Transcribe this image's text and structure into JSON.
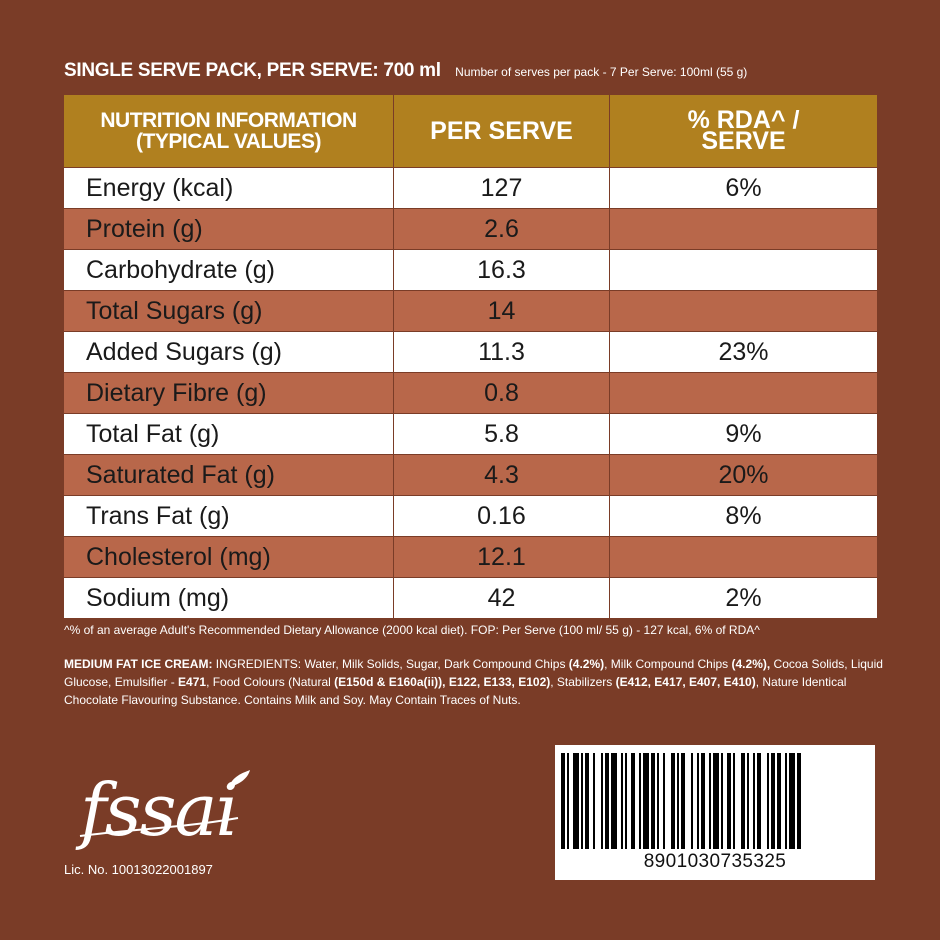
{
  "header": {
    "title": "SINGLE SERVE PACK, PER SERVE: 700 ml",
    "subtitle": "Number of serves per pack - 7 Per Serve: 100ml (55 g)"
  },
  "table": {
    "headers": {
      "col1_line1": "NUTRITION INFORMATION",
      "col1_line2": "(TYPICAL VALUES)",
      "col2": "PER SERVE",
      "col3_line1": "% RDA^ /",
      "col3_line2": "SERVE"
    },
    "rows": [
      {
        "name": "Energy (kcal)",
        "value": "127",
        "rda": "6%"
      },
      {
        "name": "Protein (g)",
        "value": "2.6",
        "rda": ""
      },
      {
        "name": "Carbohydrate (g)",
        "value": "16.3",
        "rda": ""
      },
      {
        "name": "Total Sugars (g)",
        "value": "14",
        "rda": ""
      },
      {
        "name": "Added Sugars (g)",
        "value": "11.3",
        "rda": "23%"
      },
      {
        "name": "Dietary Fibre (g)",
        "value": "0.8",
        "rda": ""
      },
      {
        "name": "Total Fat (g)",
        "value": "5.8",
        "rda": "9%"
      },
      {
        "name": "Saturated Fat (g)",
        "value": "4.3",
        "rda": "20%"
      },
      {
        "name": "Trans Fat (g)",
        "value": "0.16",
        "rda": "8%"
      },
      {
        "name": "Cholesterol (mg)",
        "value": "12.1",
        "rda": ""
      },
      {
        "name": "Sodium (mg)",
        "value": "42",
        "rda": "2%"
      }
    ]
  },
  "footnote": "^% of an average Adult's Recommended Dietary Allowance (2000 kcal diet). FOP: Per Serve (100 ml/ 55 g) - 127 kcal, 6% of RDA^",
  "ingredients": {
    "label": "MEDIUM FAT ICE CREAM:",
    "t1": " INGREDIENTS: Water, Milk Solids, Sugar, Dark Compound Chips ",
    "b1": "(4.2%)",
    "t2": ", Milk Compound Chips ",
    "b2": "(4.2%),",
    "t3": " Cocoa Solids, Liquid Glucose, Emulsifier - ",
    "b3": "E471",
    "t4": ", Food Colours (Natural ",
    "b4": "(E150d & E160a(ii)), E122, E133, E102)",
    "t5": ", Stabilizers ",
    "b5": "(E412, E417, E407, E410)",
    "t6": ", Nature Identical Chocolate Flavouring Substance. Contains Milk and Soy. May Contain Traces of Nuts."
  },
  "fssai": {
    "logo_text": "fssai",
    "license": "Lic. No. 10013022001897"
  },
  "barcode": {
    "number": "8901030735325"
  },
  "colors": {
    "background": "#7a3c27",
    "header_gold": "#b0801f",
    "row_band": "#b8674a"
  }
}
